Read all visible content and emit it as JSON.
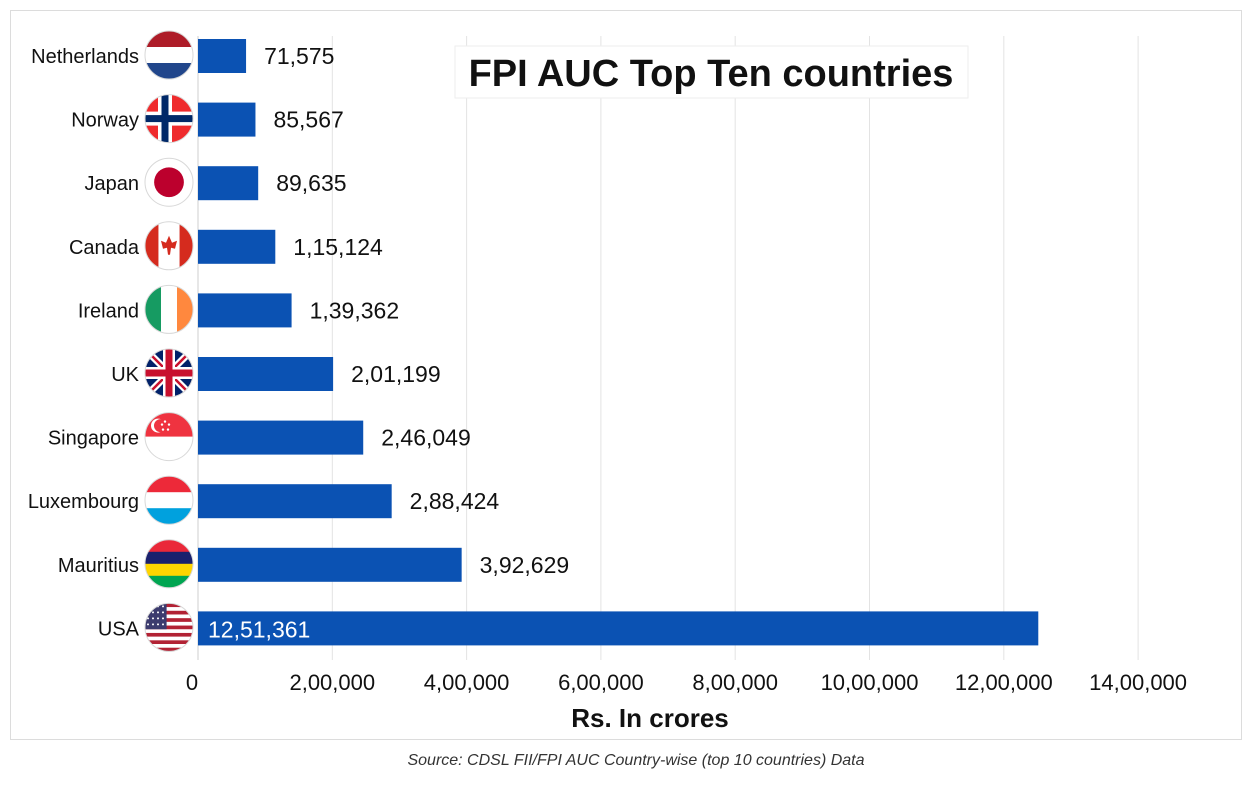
{
  "chart_data": {
    "type": "bar",
    "orientation": "horizontal",
    "title": "FPI AUC Top Ten countries",
    "xlabel": "Rs. In crores",
    "ylabel": "",
    "categories": [
      "Netherlands",
      "Norway",
      "Japan",
      "Canada",
      "Ireland",
      "UK",
      "Singapore",
      "Luxembourg",
      "Mauritius",
      "USA"
    ],
    "values": [
      71575,
      85567,
      89635,
      115124,
      139362,
      201199,
      246049,
      288424,
      392629,
      1251361
    ],
    "value_labels": [
      "71,575",
      "85,567",
      "89,635",
      "1,15,124",
      "1,39,362",
      "2,01,199",
      "2,46,049",
      "2,88,424",
      "3,92,629",
      "12,51,361"
    ],
    "flag_icons": [
      "netherlands-flag-icon",
      "norway-flag-icon",
      "japan-flag-icon",
      "canada-flag-icon",
      "ireland-flag-icon",
      "uk-flag-icon",
      "singapore-flag-icon",
      "luxembourg-flag-icon",
      "mauritius-flag-icon",
      "usa-flag-icon"
    ],
    "xlim": [
      0,
      1400000
    ],
    "x_ticks": [
      0,
      200000,
      400000,
      600000,
      800000,
      1000000,
      1200000,
      1400000
    ],
    "x_tick_labels": [
      "0",
      "2,00,000",
      "4,00,000",
      "6,00,000",
      "8,00,000",
      "10,00,000",
      "12,00,000",
      "14,00,000"
    ],
    "grid": true,
    "bar_color": "#0b52b3",
    "grid_color": "#e3e3e3"
  },
  "source": "Source: CDSL FII/FPI AUC Country-wise (top 10 countries) Data"
}
